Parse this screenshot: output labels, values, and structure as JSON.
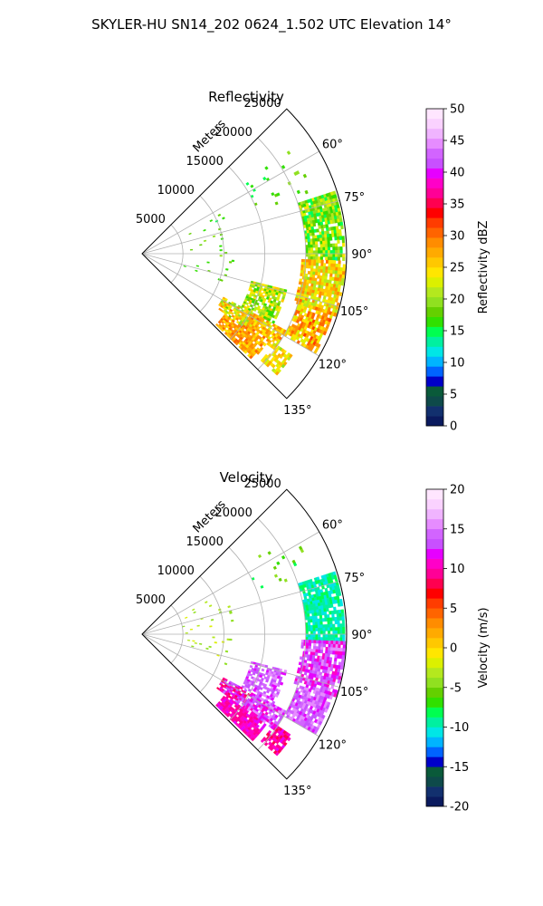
{
  "figure": {
    "suptitle": "SKYLER-HU  SN14_202  0624_1.502 UTC Elevation 14°"
  },
  "chart_data": [
    {
      "type": "heatmap",
      "subtype": "polar-sector",
      "title": "Reflectivity",
      "range_label": "Meters",
      "range_ticks": [
        5000,
        10000,
        15000,
        20000,
        25000
      ],
      "range_max": 25000,
      "angle_ticks": [
        "60°",
        "75°",
        "90°",
        "105°",
        "120°",
        "135°"
      ],
      "angle_tick_values": [
        60,
        75,
        90,
        105,
        120,
        135
      ],
      "angle_range": [
        45,
        135
      ],
      "grid": true,
      "colorbar": {
        "label": "Reflectivity dBZ",
        "ticks": [
          0,
          5,
          10,
          15,
          20,
          25,
          30,
          35,
          40,
          45,
          50
        ],
        "range": [
          0,
          50
        ],
        "colors": [
          "#0a1a5e",
          "#12306e",
          "#0e4a4a",
          "#0a5a3a",
          "#0000c8",
          "#0064ff",
          "#00b4ff",
          "#00e6e6",
          "#00f0a0",
          "#00ff50",
          "#30e000",
          "#64d000",
          "#90e020",
          "#b4e81e",
          "#dcf000",
          "#ffe600",
          "#ffc800",
          "#ffaa00",
          "#ff8c00",
          "#ff6400",
          "#ff3c00",
          "#ff0000",
          "#ff0050",
          "#ff0096",
          "#ff00c8",
          "#e600ff",
          "#c850ff",
          "#d264ff",
          "#e68cff",
          "#f0b4ff",
          "#fad2ff",
          "#ffe6ff"
        ]
      }
    },
    {
      "type": "heatmap",
      "subtype": "polar-sector",
      "title": "Velocity",
      "range_label": "Meters",
      "range_ticks": [
        5000,
        10000,
        15000,
        20000,
        25000
      ],
      "range_max": 25000,
      "angle_ticks": [
        "60°",
        "75°",
        "90°",
        "105°",
        "120°",
        "135°"
      ],
      "angle_tick_values": [
        60,
        75,
        90,
        105,
        120,
        135
      ],
      "angle_range": [
        45,
        135
      ],
      "grid": true,
      "colorbar": {
        "label": "Velocity (m/s)",
        "ticks": [
          -20,
          -15,
          -10,
          -5,
          0,
          5,
          10,
          15,
          20
        ],
        "range": [
          -20,
          20
        ],
        "colors": [
          "#0a1a5e",
          "#12306e",
          "#0e4a4a",
          "#0a5a3a",
          "#0000c8",
          "#0064ff",
          "#00b4ff",
          "#00e6e6",
          "#00f0a0",
          "#00ff50",
          "#30e000",
          "#64d000",
          "#90e020",
          "#b4e81e",
          "#dcf000",
          "#ffe600",
          "#ffc800",
          "#ffaa00",
          "#ff8c00",
          "#ff6400",
          "#ff3c00",
          "#ff0000",
          "#ff0050",
          "#ff0096",
          "#ff00c8",
          "#e600ff",
          "#c850ff",
          "#d264ff",
          "#e68cff",
          "#f0b4ff",
          "#fad2ff",
          "#ffe6ff"
        ]
      }
    }
  ]
}
